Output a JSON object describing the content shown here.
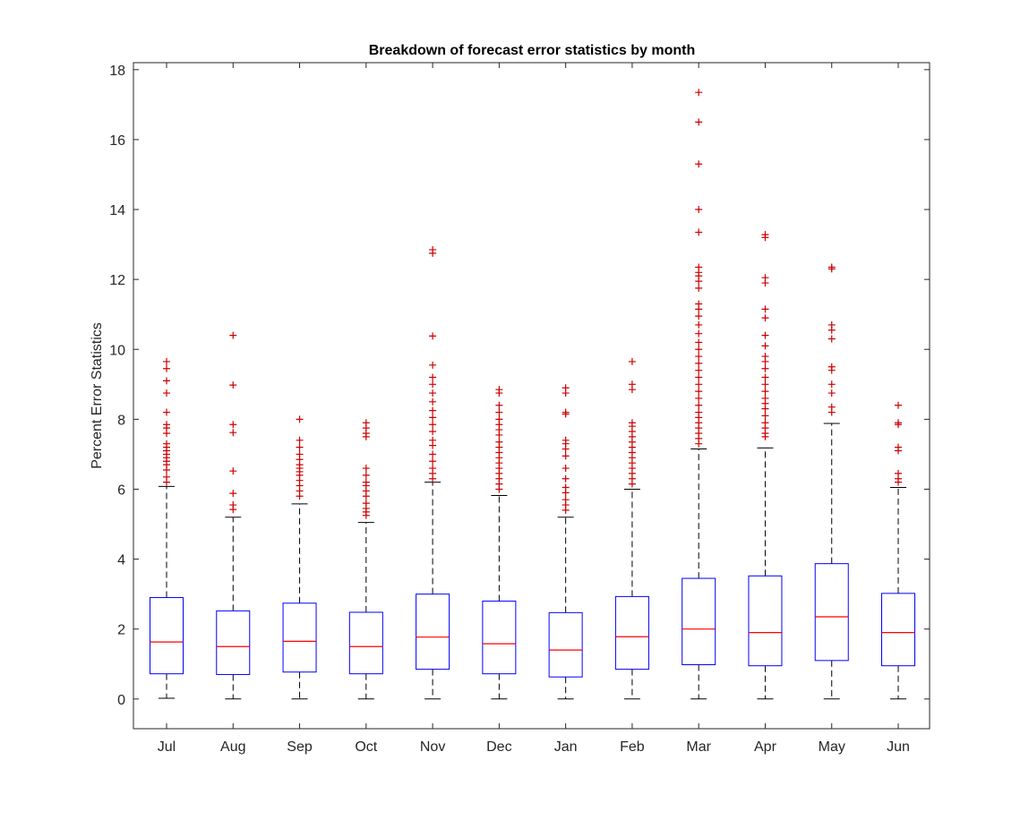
{
  "chart_data": {
    "type": "boxplot",
    "title": "Breakdown of forecast error statistics by month",
    "xlabel": "",
    "ylabel": "Percent Error Statistics",
    "ylim": [
      -0.85,
      18.2
    ],
    "yticks": [
      0,
      2,
      4,
      6,
      8,
      10,
      12,
      14,
      16,
      18
    ],
    "ytick_labels": [
      "0",
      "2",
      "4",
      "6",
      "8",
      "10",
      "12",
      "14",
      "16",
      "18"
    ],
    "categories": [
      "Jul",
      "Aug",
      "Sep",
      "Oct",
      "Nov",
      "Dec",
      "Jan",
      "Feb",
      "Mar",
      "Apr",
      "May",
      "Jun"
    ],
    "colors": {
      "box": "#0000ff",
      "median": "#ff0000",
      "outlier": "#cc0000",
      "whisker": "#000000",
      "axis": "#262626"
    },
    "boxes": [
      {
        "month": "Jul",
        "whisker_low": 0.02,
        "q1": 0.72,
        "median": 1.63,
        "q3": 2.9,
        "whisker_high": 6.08,
        "outliers": [
          6.2,
          6.35,
          6.55,
          6.7,
          6.8,
          6.9,
          7.0,
          7.1,
          7.2,
          7.3,
          7.6,
          7.75,
          7.85,
          8.2,
          8.75,
          9.1,
          9.45,
          9.65
        ]
      },
      {
        "month": "Aug",
        "whisker_low": 0.0,
        "q1": 0.7,
        "median": 1.5,
        "q3": 2.52,
        "whisker_high": 5.2,
        "outliers": [
          5.42,
          5.55,
          5.88,
          6.52,
          7.62,
          7.85,
          8.98,
          10.4
        ]
      },
      {
        "month": "Sep",
        "whisker_low": 0.0,
        "q1": 0.77,
        "median": 1.65,
        "q3": 2.74,
        "whisker_high": 5.58,
        "outliers": [
          5.8,
          5.95,
          6.1,
          6.25,
          6.4,
          6.5,
          6.6,
          6.7,
          6.85,
          7.0,
          7.2,
          7.4,
          8.0
        ]
      },
      {
        "month": "Oct",
        "whisker_low": 0.0,
        "q1": 0.72,
        "median": 1.5,
        "q3": 2.48,
        "whisker_high": 5.05,
        "outliers": [
          5.25,
          5.35,
          5.45,
          5.6,
          5.8,
          5.95,
          6.1,
          6.2,
          6.4,
          6.6,
          7.5,
          7.6,
          7.75,
          7.9
        ]
      },
      {
        "month": "Nov",
        "whisker_low": 0.0,
        "q1": 0.85,
        "median": 1.77,
        "q3": 3.0,
        "whisker_high": 6.2,
        "outliers": [
          6.3,
          6.45,
          6.6,
          6.8,
          7.0,
          7.25,
          7.4,
          7.65,
          7.85,
          8.05,
          8.25,
          8.5,
          8.75,
          9.0,
          9.2,
          9.55,
          10.38,
          12.75,
          12.85
        ]
      },
      {
        "month": "Dec",
        "whisker_low": 0.0,
        "q1": 0.72,
        "median": 1.58,
        "q3": 2.8,
        "whisker_high": 5.82,
        "outliers": [
          6.0,
          6.15,
          6.3,
          6.45,
          6.6,
          6.75,
          6.9,
          7.05,
          7.2,
          7.35,
          7.55,
          7.7,
          7.85,
          8.0,
          8.2,
          8.4,
          8.75,
          8.85
        ]
      },
      {
        "month": "Jan",
        "whisker_low": 0.0,
        "q1": 0.63,
        "median": 1.4,
        "q3": 2.47,
        "whisker_high": 5.2,
        "outliers": [
          5.4,
          5.55,
          5.7,
          5.9,
          6.05,
          6.3,
          6.6,
          6.95,
          7.15,
          7.3,
          7.4,
          8.15,
          8.2,
          8.75,
          8.9
        ]
      },
      {
        "month": "Feb",
        "whisker_low": 0.0,
        "q1": 0.85,
        "median": 1.78,
        "q3": 2.93,
        "whisker_high": 6.0,
        "outliers": [
          6.15,
          6.3,
          6.45,
          6.6,
          6.75,
          6.9,
          7.05,
          7.2,
          7.35,
          7.5,
          7.65,
          7.8,
          7.9,
          8.85,
          9.0,
          9.65
        ]
      },
      {
        "month": "Mar",
        "whisker_low": 0.0,
        "q1": 0.98,
        "median": 2.0,
        "q3": 3.45,
        "whisker_high": 7.15,
        "outliers": [
          7.3,
          7.45,
          7.6,
          7.75,
          7.9,
          8.05,
          8.2,
          8.4,
          8.6,
          8.8,
          9.0,
          9.2,
          9.4,
          9.6,
          9.8,
          10.0,
          10.2,
          10.45,
          10.7,
          10.95,
          11.15,
          11.3,
          11.75,
          11.95,
          12.1,
          12.2,
          12.35,
          13.35,
          14.0,
          15.3,
          16.5,
          17.35
        ]
      },
      {
        "month": "Apr",
        "whisker_low": 0.0,
        "q1": 0.95,
        "median": 1.9,
        "q3": 3.52,
        "whisker_high": 7.18,
        "outliers": [
          7.5,
          7.6,
          7.75,
          7.9,
          8.1,
          8.3,
          8.45,
          8.6,
          8.8,
          9.0,
          9.2,
          9.45,
          9.65,
          9.8,
          10.1,
          10.4,
          10.9,
          11.15,
          11.9,
          12.05,
          13.2,
          13.28
        ]
      },
      {
        "month": "May",
        "whisker_low": 0.0,
        "q1": 1.1,
        "median": 2.35,
        "q3": 3.87,
        "whisker_high": 7.88,
        "outliers": [
          8.2,
          8.35,
          8.75,
          9.0,
          9.4,
          9.5,
          10.3,
          10.55,
          10.7,
          12.3,
          12.35
        ]
      },
      {
        "month": "Jun",
        "whisker_low": 0.0,
        "q1": 0.95,
        "median": 1.9,
        "q3": 3.02,
        "whisker_high": 6.05,
        "outliers": [
          6.2,
          6.3,
          6.45,
          7.1,
          7.2,
          7.85,
          7.9,
          8.4
        ]
      }
    ]
  }
}
